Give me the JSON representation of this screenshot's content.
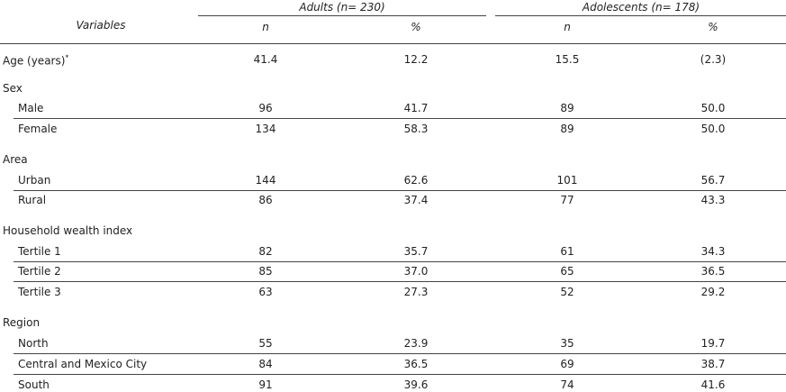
{
  "header": {
    "variables": "Variables",
    "groups": [
      {
        "title": "Adults (n= 230)",
        "columns": [
          "n",
          "%"
        ]
      },
      {
        "title": "Adolescents (n= 178)",
        "columns": [
          "n",
          "%"
        ]
      }
    ]
  },
  "table": {
    "rows": [
      {
        "label": "Age (years)",
        "mark": "*",
        "cells": [
          "41.4",
          "12.2",
          "15.5",
          "(2.3)"
        ]
      },
      {
        "label": "Sex"
      },
      {
        "label": "Male",
        "cells": [
          "96",
          "41.7",
          "89",
          "50.0"
        ]
      },
      {
        "label": "Female",
        "cells": [
          "134",
          "58.3",
          "89",
          "50.0"
        ]
      },
      {
        "label": "Area"
      },
      {
        "label": "Urban",
        "cells": [
          "144",
          "62.6",
          "101",
          "56.7"
        ]
      },
      {
        "label": "Rural",
        "cells": [
          "86",
          "37.4",
          "77",
          "43.3"
        ]
      },
      {
        "label": "Household wealth index"
      },
      {
        "label": "Tertile 1",
        "cells": [
          "82",
          "35.7",
          "61",
          "34.3"
        ]
      },
      {
        "label": "Tertile 2",
        "cells": [
          "85",
          "37.0",
          "65",
          "36.5"
        ]
      },
      {
        "label": "Tertile 3",
        "cells": [
          "63",
          "27.3",
          "52",
          "29.2"
        ]
      },
      {
        "label": "Region"
      },
      {
        "label": "North",
        "cells": [
          "55",
          "23.9",
          "35",
          "19.7"
        ]
      },
      {
        "label": "Central and Mexico City",
        "cells": [
          "84",
          "36.5",
          "69",
          "38.7"
        ]
      },
      {
        "label": "South",
        "cells": [
          "91",
          "39.6",
          "74",
          "41.6"
        ]
      }
    ]
  }
}
